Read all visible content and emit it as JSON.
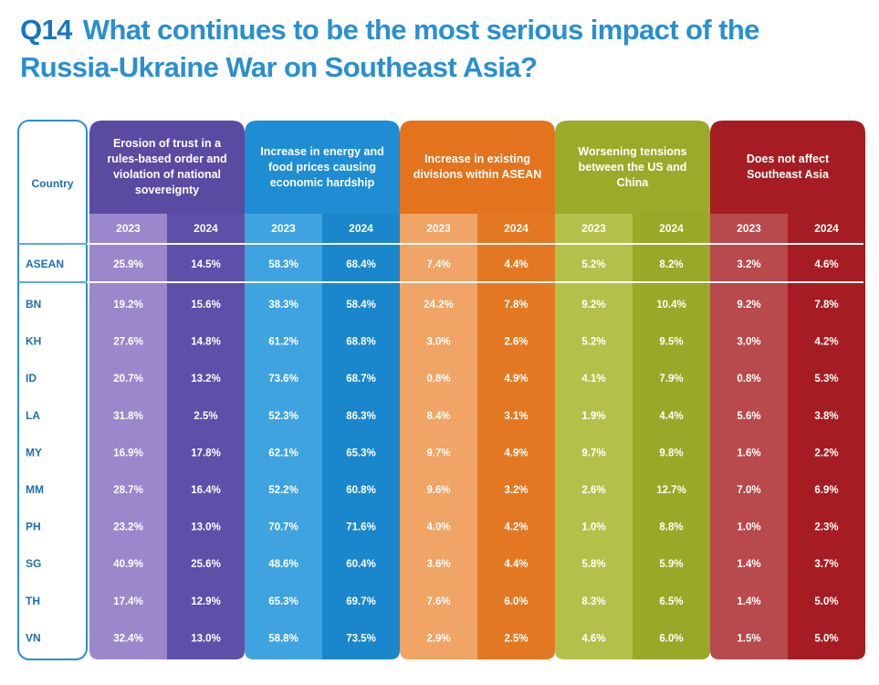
{
  "title": {
    "number": "Q14",
    "text": "What continues to be the most serious impact of the Russia-Ukraine War on Southeast Asia?"
  },
  "chart_data": {
    "type": "table",
    "row_header_label": "Country",
    "years": [
      "2023",
      "2024"
    ],
    "categories": [
      {
        "label": "Erosion of trust in a rules-based order and violation of national sovereignty",
        "colors": {
          "header": "#5a4aa2",
          "c2023": "#9b88cc",
          "c2024": "#5e4fa8"
        }
      },
      {
        "label": "Increase in energy and food prices causing economic hardship",
        "colors": {
          "header": "#1e8dd4",
          "c2023": "#3fa3e0",
          "c2024": "#1a86cc"
        }
      },
      {
        "label": "Increase in existing divisions within ASEAN",
        "colors": {
          "header": "#e3731d",
          "c2023": "#f0a466",
          "c2024": "#e47822"
        }
      },
      {
        "label": "Worsening tensions between the US and China",
        "colors": {
          "header": "#9aab2a",
          "c2023": "#b3c14a",
          "c2024": "#97a927"
        }
      },
      {
        "label": "Does not affect Southeast Asia",
        "colors": {
          "header": "#a51d22",
          "c2023": "#b8494c",
          "c2024": "#a51d22"
        }
      }
    ],
    "rows": [
      {
        "country": "ASEAN",
        "values": [
          "25.9%",
          "14.5%",
          "58.3%",
          "68.4%",
          "7.4%",
          "4.4%",
          "5.2%",
          "8.2%",
          "3.2%",
          "4.6%"
        ]
      },
      {
        "country": "BN",
        "values": [
          "19.2%",
          "15.6%",
          "38.3%",
          "58.4%",
          "24.2%",
          "7.8%",
          "9.2%",
          "10.4%",
          "9.2%",
          "7.8%"
        ]
      },
      {
        "country": "KH",
        "values": [
          "27.6%",
          "14.8%",
          "61.2%",
          "68.8%",
          "3.0%",
          "2.6%",
          "5.2%",
          "9.5%",
          "3.0%",
          "4.2%"
        ]
      },
      {
        "country": "ID",
        "values": [
          "20.7%",
          "13.2%",
          "73.6%",
          "68.7%",
          "0.8%",
          "4.9%",
          "4.1%",
          "7.9%",
          "0.8%",
          "5.3%"
        ]
      },
      {
        "country": "LA",
        "values": [
          "31.8%",
          "2.5%",
          "52.3%",
          "86.3%",
          "8.4%",
          "3.1%",
          "1.9%",
          "4.4%",
          "5.6%",
          "3.8%"
        ]
      },
      {
        "country": "MY",
        "values": [
          "16.9%",
          "17.8%",
          "62.1%",
          "65.3%",
          "9.7%",
          "4.9%",
          "9.7%",
          "9.8%",
          "1.6%",
          "2.2%"
        ]
      },
      {
        "country": "MM",
        "values": [
          "28.7%",
          "16.4%",
          "52.2%",
          "60.8%",
          "9.6%",
          "3.2%",
          "2.6%",
          "12.7%",
          "7.0%",
          "6.9%"
        ]
      },
      {
        "country": "PH",
        "values": [
          "23.2%",
          "13.0%",
          "70.7%",
          "71.6%",
          "4.0%",
          "4.2%",
          "1.0%",
          "8.8%",
          "1.0%",
          "2.3%"
        ]
      },
      {
        "country": "SG",
        "values": [
          "40.9%",
          "25.6%",
          "48.6%",
          "60.4%",
          "3.6%",
          "4.4%",
          "5.8%",
          "5.9%",
          "1.4%",
          "3.7%"
        ]
      },
      {
        "country": "TH",
        "values": [
          "17.4%",
          "12.9%",
          "65.3%",
          "69.7%",
          "7.6%",
          "6.0%",
          "8.3%",
          "6.5%",
          "1.4%",
          "5.0%"
        ]
      },
      {
        "country": "VN",
        "values": [
          "32.4%",
          "13.0%",
          "58.8%",
          "73.5%",
          "2.9%",
          "2.5%",
          "4.6%",
          "6.0%",
          "1.5%",
          "5.0%"
        ]
      }
    ]
  }
}
